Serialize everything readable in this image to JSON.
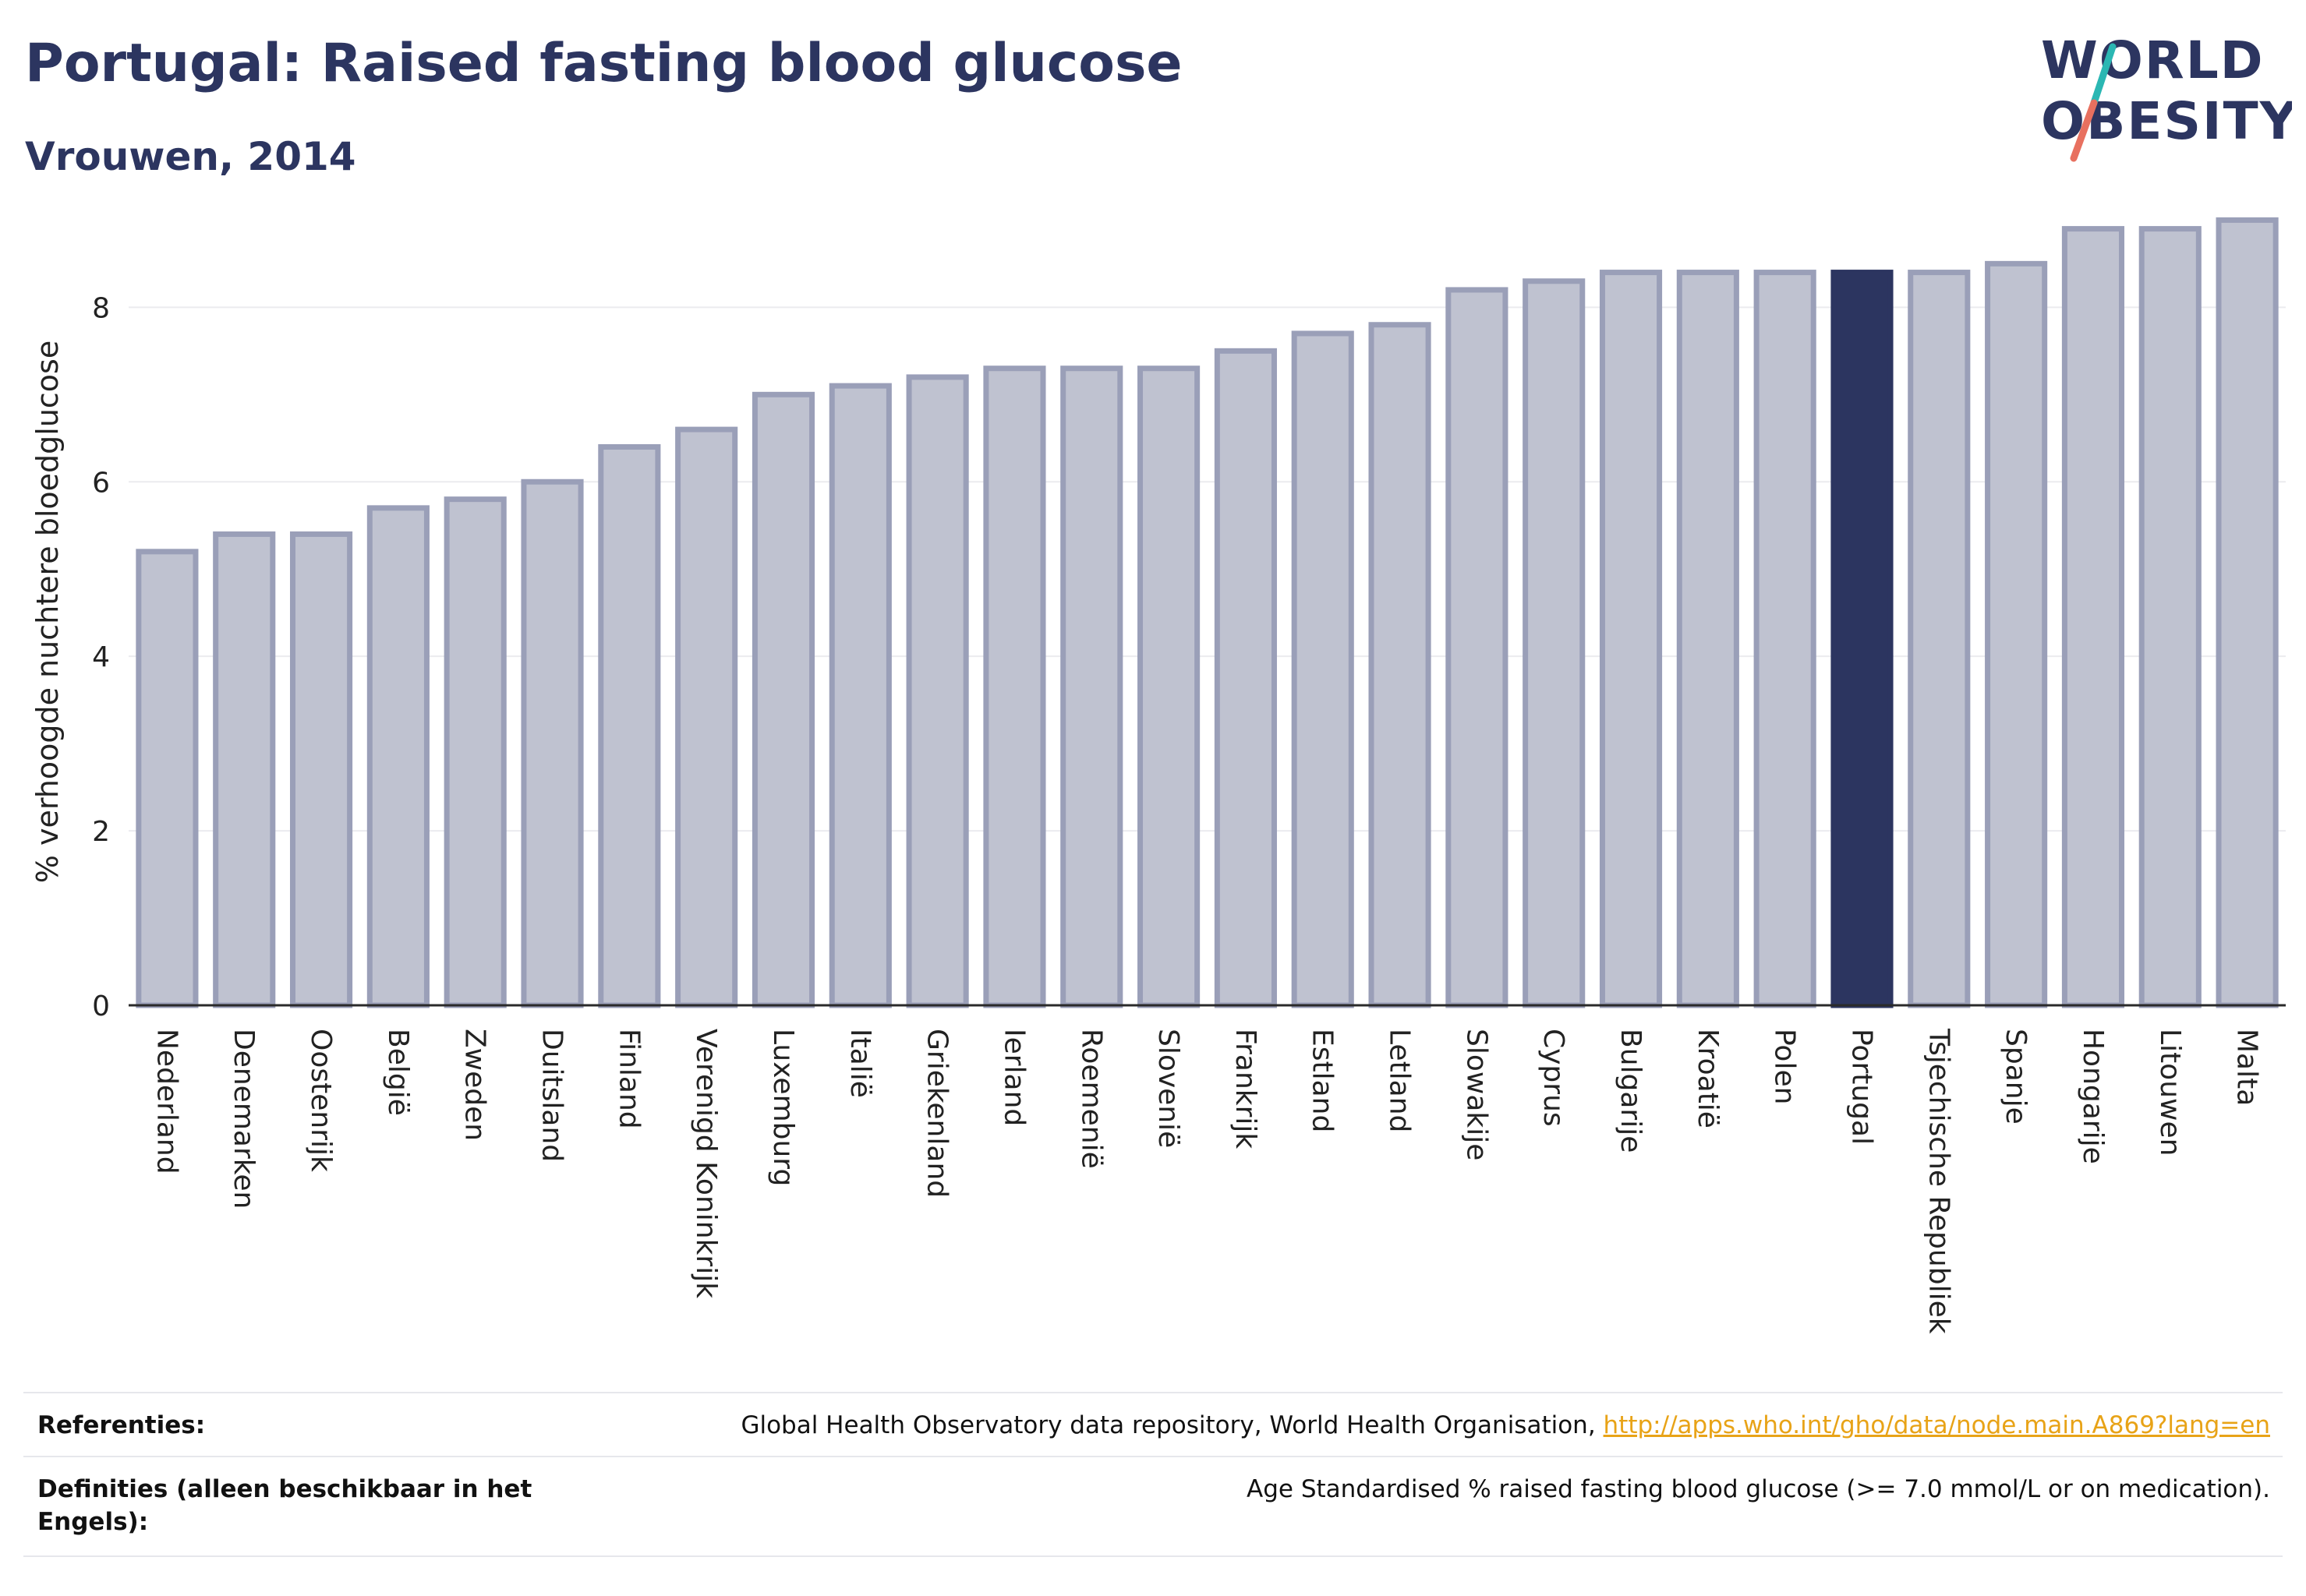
{
  "header": {
    "title": "Portugal: Raised fasting blood glucose",
    "subtitle": "Vrouwen, 2014"
  },
  "logo": {
    "line1": "WORLD",
    "line2": "OBESITY",
    "icon": "world-obesity-slash-logo",
    "colors": {
      "text": "#2c3560",
      "slash_top": "#2bb7b3",
      "slash_bottom": "#e8705f"
    }
  },
  "chart_data": {
    "type": "bar",
    "ylabel": "% verhoogde nuchtere bloedglucose",
    "xlabel": "",
    "ylim": [
      0,
      9.2
    ],
    "yticks": [
      0,
      2,
      4,
      6,
      8
    ],
    "grid": true,
    "highlight": "Portugal",
    "colors": {
      "bar": "#bfc2d0",
      "bar_border": "#9a9fb8",
      "highlight": "#2c3560"
    },
    "categories": [
      "Nederland",
      "Denemarken",
      "Oostenrijk",
      "België",
      "Zweden",
      "Duitsland",
      "Finland",
      "Verenigd Koninkrijk",
      "Luxemburg",
      "Italië",
      "Griekenland",
      "Ierland",
      "Roemenië",
      "Slovenië",
      "Frankrijk",
      "Estland",
      "Letland",
      "Slowakije",
      "Cyprus",
      "Bulgarije",
      "Kroatië",
      "Polen",
      "Portugal",
      "Tsjechische Republiek",
      "Spanje",
      "Hongarije",
      "Litouwen",
      "Malta"
    ],
    "values": [
      5.2,
      5.4,
      5.4,
      5.7,
      5.8,
      6.0,
      6.4,
      6.6,
      7.0,
      7.1,
      7.2,
      7.3,
      7.3,
      7.3,
      7.5,
      7.7,
      7.8,
      8.2,
      8.3,
      8.4,
      8.4,
      8.4,
      8.4,
      8.4,
      8.5,
      8.9,
      8.9,
      9.0
    ]
  },
  "references": {
    "label": "Referenties:",
    "text": "Global Health Observatory data repository, World Health Organisation, ",
    "link": "http://apps.who.int/gho/data/node.main.A869?lang=en"
  },
  "definitions": {
    "label": "Definities (alleen beschikbaar in het Engels):",
    "text": "Age Standardised % raised fasting blood glucose (>= 7.0 mmol/L or on medication)."
  }
}
